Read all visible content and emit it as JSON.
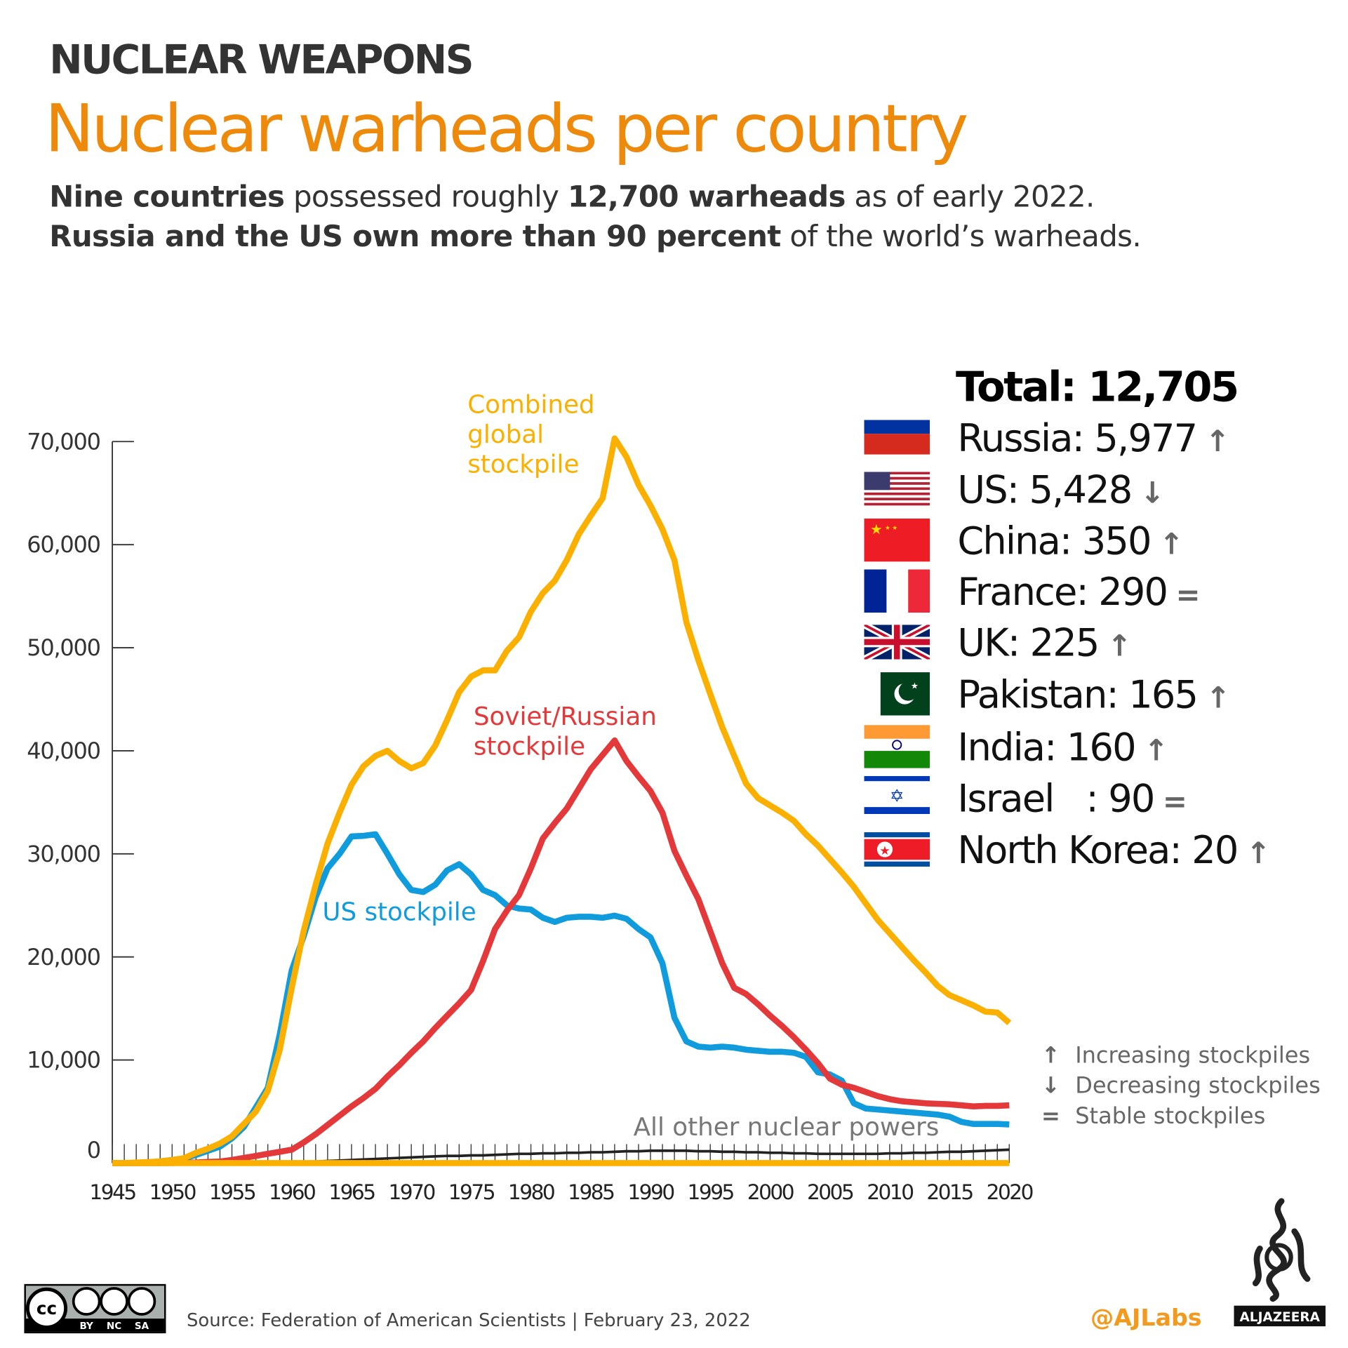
{
  "header": {
    "kicker": "NUCLEAR WEAPONS",
    "title": "Nuclear warheads per country",
    "line1": [
      {
        "t": "Nine countries",
        "b": true
      },
      {
        "t": " possessed roughly ",
        "b": false
      },
      {
        "t": "12,700 warheads",
        "b": true
      },
      {
        "t": " as of early 2022.",
        "b": false
      }
    ],
    "line2": [
      {
        "t": "Russia and the US own more than 90 percent",
        "b": true
      },
      {
        "t": " of the world’s warheads.",
        "b": false
      }
    ]
  },
  "legend": {
    "total": "Total: 12,705",
    "rows": [
      {
        "label": "Russia: 5,977",
        "trend": "up",
        "flag": "russia-flag"
      },
      {
        "label": "US: 5,428",
        "trend": "down",
        "flag": "us-flag"
      },
      {
        "label": "China: 350",
        "trend": "up",
        "flag": "china-flag"
      },
      {
        "label": "France: 290",
        "trend": "stable",
        "flag": "france-flag"
      },
      {
        "label": "UK: 225",
        "trend": "up",
        "flag": "uk-flag"
      },
      {
        "label": "Pakistan: 165",
        "trend": "up",
        "flag": "pakistan-flag"
      },
      {
        "label": "India: 160",
        "trend": "up",
        "flag": "india-flag"
      },
      {
        "label": "Israel   : 90",
        "trend": "stable",
        "flag": "israel-flag"
      },
      {
        "label": "North Korea: 20",
        "trend": "up",
        "flag": "north-korea-flag"
      }
    ],
    "trend_symbols": {
      "up": "↑",
      "down": "↓",
      "stable": "="
    }
  },
  "key": [
    {
      "symbol": "↑",
      "label": "Increasing stockpiles"
    },
    {
      "symbol": "↓",
      "label": "Decreasing stockpiles"
    },
    {
      "symbol": "=",
      "label": "Stable stockpiles"
    }
  ],
  "chart_data": {
    "type": "line",
    "title": "",
    "xlabel": "",
    "ylabel": "",
    "xlim": [
      1945,
      2020
    ],
    "ylim": [
      0,
      70000
    ],
    "x_ticks": [
      1945,
      1950,
      1955,
      1960,
      1965,
      1970,
      1975,
      1980,
      1985,
      1990,
      1995,
      2000,
      2005,
      2010,
      2015,
      2020
    ],
    "y_ticks": [
      0,
      10000,
      20000,
      30000,
      40000,
      50000,
      60000,
      70000
    ],
    "y_tick_labels": [
      "0",
      "10,000",
      "20,000",
      "30,000",
      "40,000",
      "50,000",
      "60,000",
      "70,000"
    ],
    "grid": false,
    "x": [
      1945,
      1946,
      1947,
      1948,
      1949,
      1950,
      1951,
      1952,
      1953,
      1954,
      1955,
      1956,
      1957,
      1958,
      1959,
      1960,
      1961,
      1962,
      1963,
      1964,
      1965,
      1966,
      1967,
      1968,
      1969,
      1970,
      1971,
      1972,
      1973,
      1974,
      1975,
      1976,
      1977,
      1978,
      1979,
      1980,
      1981,
      1982,
      1983,
      1984,
      1985,
      1986,
      1987,
      1988,
      1989,
      1990,
      1991,
      1992,
      1993,
      1994,
      1995,
      1996,
      1997,
      1998,
      1999,
      2000,
      2001,
      2002,
      2003,
      2004,
      2005,
      2006,
      2007,
      2008,
      2009,
      2010,
      2011,
      2012,
      2013,
      2014,
      2015,
      2016,
      2017,
      2018,
      2019,
      2020
    ],
    "series": [
      {
        "name": "Combined global stockpile",
        "color": "#fbb000",
        "label_lines": [
          "Combined",
          "global",
          "stockpile"
        ],
        "values": [
          0,
          0,
          50,
          100,
          170,
          300,
          480,
          1000,
          1400,
          1900,
          2600,
          3800,
          5000,
          7000,
          11000,
          17000,
          22500,
          27000,
          31000,
          34000,
          36700,
          38500,
          39500,
          40000,
          39000,
          38300,
          38800,
          40500,
          43000,
          45700,
          47200,
          47800,
          47800,
          49700,
          51000,
          53500,
          55300,
          56500,
          58500,
          61000,
          62800,
          64500,
          70300,
          68500,
          65800,
          63800,
          61500,
          58500,
          52500,
          48800,
          45500,
          42300,
          39500,
          36800,
          35400,
          34700,
          34000,
          33200,
          31900,
          30800,
          29500,
          28200,
          26800,
          25200,
          23600,
          22300,
          21000,
          19700,
          18500,
          17200,
          16300,
          15800,
          15300,
          14700,
          14600,
          13600
        ]
      },
      {
        "name": "Soviet/Russian stockpile",
        "color": "#e4393a",
        "label_lines": [
          "Soviet/Russian",
          "stockpile"
        ],
        "values": [
          0,
          0,
          0,
          0,
          1,
          5,
          25,
          50,
          120,
          150,
          300,
          500,
          700,
          900,
          1100,
          1300,
          2000,
          2800,
          3700,
          4600,
          5500,
          6300,
          7200,
          8400,
          9500,
          10700,
          11800,
          13100,
          14300,
          15500,
          16800,
          19600,
          22700,
          24500,
          26000,
          28600,
          31500,
          33000,
          34400,
          36300,
          38200,
          39600,
          41000,
          39000,
          37500,
          36100,
          34000,
          30300,
          27900,
          25600,
          22500,
          19400,
          17000,
          16400,
          15400,
          14300,
          13300,
          12200,
          11000,
          9700,
          8200,
          7600,
          7300,
          6900,
          6500,
          6200,
          6000,
          5900,
          5800,
          5750,
          5700,
          5600,
          5500,
          5550,
          5550,
          5600
        ]
      },
      {
        "name": "US stockpile",
        "color": "#109cdc",
        "label_lines": [
          "US stockpile"
        ],
        "values": [
          0,
          0,
          13,
          50,
          170,
          300,
          450,
          800,
          1200,
          1600,
          2400,
          3500,
          5400,
          7300,
          12500,
          18700,
          22000,
          25800,
          28600,
          30000,
          31700,
          31750,
          31900,
          30000,
          28000,
          26500,
          26300,
          27000,
          28400,
          29000,
          28000,
          26500,
          26000,
          25000,
          24700,
          24600,
          23800,
          23400,
          23800,
          23900,
          23900,
          23800,
          24000,
          23700,
          22700,
          21900,
          19400,
          14100,
          11800,
          11300,
          11200,
          11300,
          11200,
          11000,
          10900,
          10800,
          10800,
          10700,
          10300,
          8800,
          8600,
          8000,
          5800,
          5300,
          5200,
          5100,
          5000,
          4900,
          4800,
          4700,
          4500,
          4000,
          3800,
          3800,
          3800,
          3750
        ]
      },
      {
        "name": "All other nuclear powers",
        "color": "#222222",
        "label_lines": [
          "All other nuclear powers"
        ],
        "values": [
          0,
          0,
          0,
          0,
          0,
          0,
          0,
          0,
          0,
          0,
          0,
          0,
          0,
          0,
          0,
          50,
          100,
          150,
          200,
          250,
          300,
          350,
          400,
          450,
          500,
          550,
          600,
          650,
          700,
          700,
          750,
          750,
          800,
          850,
          900,
          900,
          950,
          950,
          1000,
          1000,
          1050,
          1050,
          1100,
          1150,
          1150,
          1200,
          1200,
          1200,
          1200,
          1150,
          1150,
          1100,
          1100,
          1050,
          1050,
          1000,
          1000,
          950,
          950,
          900,
          900,
          900,
          900,
          900,
          900,
          950,
          950,
          1000,
          1000,
          1050,
          1100,
          1100,
          1150,
          1200,
          1250,
          1300
        ]
      }
    ]
  },
  "footer": {
    "source": "Source: Federation of American Scientists | February 23, 2022",
    "handle": "@AJLabs",
    "brand": "ALJAZEERA",
    "license": [
      "BY",
      "NC",
      "SA"
    ],
    "license_mark": "cc"
  }
}
